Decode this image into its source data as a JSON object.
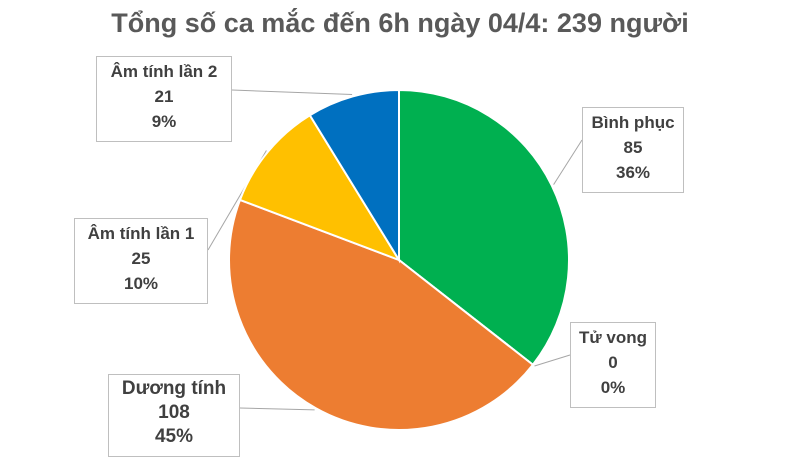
{
  "chart_data": {
    "type": "pie",
    "title": "Tổng số ca mắc đến 6h ngày 04/4: 239 người",
    "slices": [
      {
        "name": "Bình phục",
        "value": 85,
        "percent": "36%",
        "color": "#00b050"
      },
      {
        "name": "Tử vong",
        "value": 0,
        "percent": "0%",
        "color": "#a6a6a6"
      },
      {
        "name": "Dương tính",
        "value": 108,
        "percent": "45%",
        "color": "#ed7d31"
      },
      {
        "name": "Âm tính lần 1",
        "value": 25,
        "percent": "10%",
        "color": "#ffc000"
      },
      {
        "name": "Âm tính lần 2",
        "value": 21,
        "percent": "9%",
        "color": "#0070c0"
      }
    ],
    "legend": "none"
  }
}
